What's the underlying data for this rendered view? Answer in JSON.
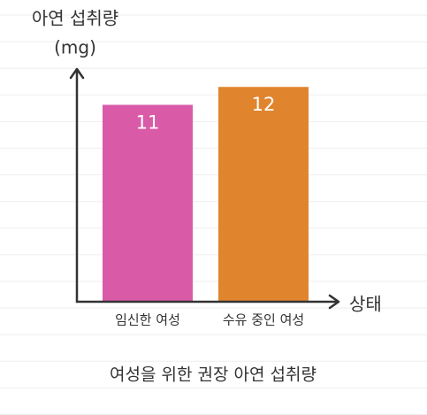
{
  "chart_data": {
    "type": "bar",
    "y_label": [
      "아연 섭취량",
      "(mg)"
    ],
    "x_label": "상태",
    "caption": "여성을 위한 권장 아연 섭취량",
    "categories": [
      "임신한 여성",
      "수유 중인 여성"
    ],
    "values": [
      11,
      12
    ],
    "colors": [
      "#d95ba8",
      "#e0852e"
    ],
    "ylim": [
      0,
      13
    ]
  }
}
